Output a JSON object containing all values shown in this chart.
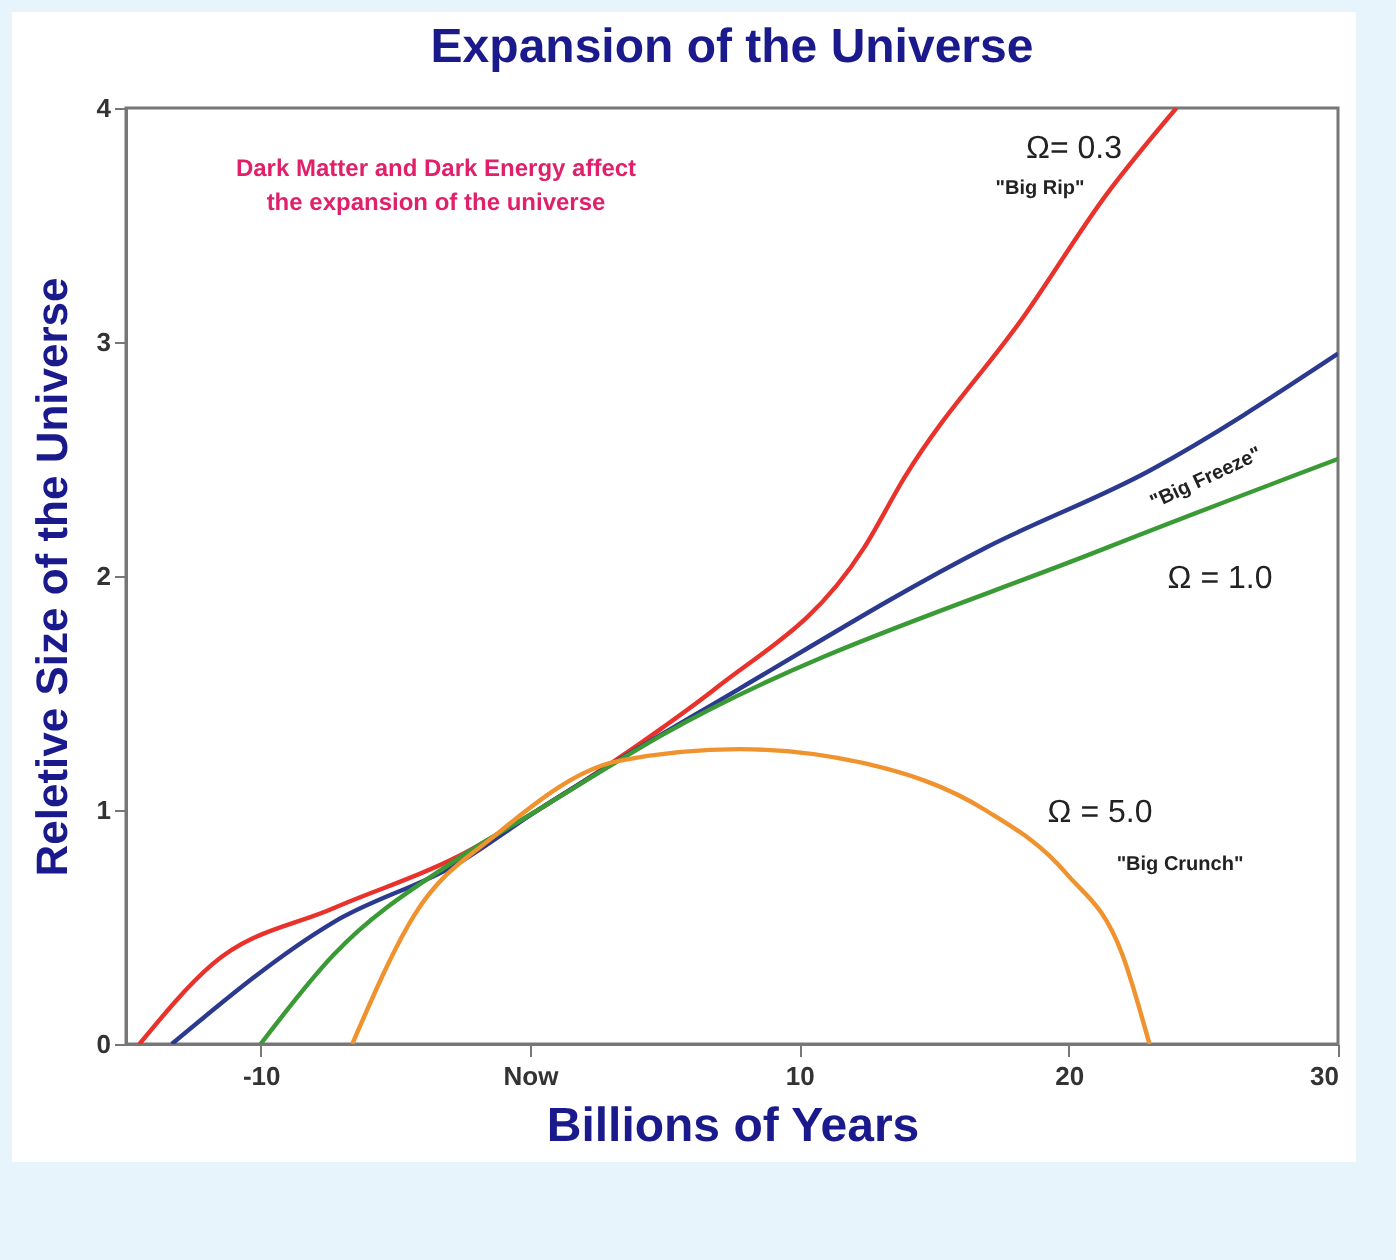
{
  "chart_data": {
    "type": "line",
    "title": "Expansion of the Universe",
    "xlabel": "Billions of Years",
    "ylabel": "Reletive Size of the Universe",
    "xlim": [
      -15,
      30
    ],
    "xticks": [
      -10,
      {
        "value": 0,
        "label": "Now"
      },
      10,
      20,
      30
    ],
    "ylim": [
      0,
      4
    ],
    "yticks": [
      0,
      1,
      2,
      3,
      4
    ],
    "grid": false,
    "marker": "none",
    "line_style": "solid",
    "series": [
      {
        "color": "#e8322b",
        "x": [
          -14.5,
          -11.8,
          -7.3,
          -2.7,
          0.3,
          4.9,
          6.9,
          12.4,
          13.9,
          18.4,
          21.4,
          24.0
        ],
        "values": [
          0,
          0.34,
          0.58,
          0.8,
          1.0,
          1.35,
          1.52,
          2.12,
          2.42,
          3.12,
          3.63,
          4.0
        ]
      },
      {
        "color": "#2b3a8f",
        "x": [
          -13.3,
          -7.3,
          -2.7,
          0.3,
          7.8,
          16.9,
          23,
          30
        ],
        "values": [
          0,
          0.52,
          0.77,
          1.0,
          1.52,
          2.12,
          2.45,
          2.95
        ]
      },
      {
        "color": "#3a9a35",
        "x": [
          -10,
          -7.3,
          -2.7,
          0.3,
          4.9,
          21.4,
          30
        ],
        "values": [
          0,
          0.38,
          0.79,
          1.0,
          1.32,
          2.12,
          2.5
        ]
      },
      {
        "color": "#f0922e",
        "x": [
          -6.6,
          -4.3,
          -1.2,
          3.3,
          7.8,
          12.4,
          16.9,
          19.9,
          22,
          23
        ],
        "values": [
          0,
          0.55,
          0.9,
          1.21,
          1.26,
          1.2,
          1.0,
          0.73,
          0.38,
          0
        ]
      }
    ],
    "annotations": [
      "Dark Matter and Dark Energy affect the expansion of the universe",
      "Ω= 0.3",
      "\"Big Rip\"",
      "\"Big Freeze\"",
      "Ω = 1.0",
      "Ω = 5.0",
      "\"Big Crunch\""
    ]
  }
}
